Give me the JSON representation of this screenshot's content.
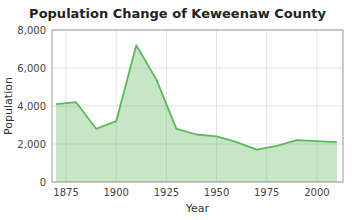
{
  "chart_data": {
    "type": "area",
    "title": "Population Change of Keweenaw County",
    "x_label": "Year",
    "y_label": "Population",
    "x": [
      1870,
      1880,
      1890,
      1900,
      1910,
      1920,
      1930,
      1940,
      1950,
      1960,
      1970,
      1980,
      1990,
      2000,
      2010
    ],
    "values": [
      4100,
      4200,
      2800,
      3200,
      7200,
      5400,
      2800,
      2500,
      2400,
      2100,
      1700,
      1900,
      2200,
      2150,
      2100
    ],
    "color": "#5cb85c",
    "xlim": [
      1868,
      2013
    ],
    "xticks": [
      1875,
      1900,
      1925,
      1950,
      1975,
      2000
    ],
    "ylim": [
      0,
      8000
    ],
    "yticks": [
      0,
      {
        "value": 2000,
        "label": "2,000"
      },
      {
        "value": 4000,
        "label": "4,000"
      },
      {
        "value": 6000,
        "label": "6,000"
      },
      {
        "value": 8000,
        "label": "8,000"
      }
    ],
    "grid": true
  }
}
